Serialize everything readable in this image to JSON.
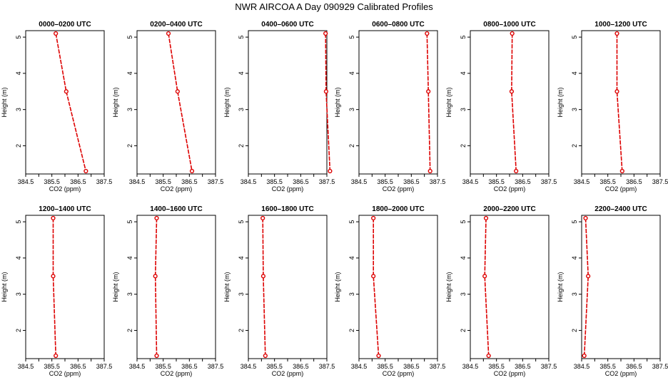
{
  "title": "NWR AIRCOA A  Day 090929  Calibrated Profiles",
  "colors": {
    "profile": "#dd0000",
    "axis": "#000000"
  },
  "chart_data": [
    {
      "type": "line",
      "title": "0000–0200 UTC",
      "xlabel": "CO2 (ppm)",
      "ylabel": "Height (m)",
      "xlim": [
        384.5,
        387.5
      ],
      "ylim": [
        1.3,
        5.1
      ],
      "xticks": [
        "384.5",
        "385.5",
        "386.5",
        "387.5"
      ],
      "yticks": [
        "2",
        "3",
        "4",
        "5"
      ],
      "grid": false,
      "series": [
        {
          "x": [
            385.65,
            386.05,
            386.8
          ],
          "y": [
            5.1,
            3.5,
            1.3
          ]
        }
      ]
    },
    {
      "type": "line",
      "title": "0200–0400 UTC",
      "xlabel": "CO2 (ppm)",
      "ylabel": "Height (m)",
      "xlim": [
        384.5,
        387.5
      ],
      "ylim": [
        1.3,
        5.1
      ],
      "xticks": [
        "384.5",
        "385.5",
        "386.5",
        "387.5"
      ],
      "yticks": [
        "2",
        "3",
        "4",
        "5"
      ],
      "grid": false,
      "series": [
        {
          "x": [
            385.7,
            386.05,
            386.6
          ],
          "y": [
            5.1,
            3.5,
            1.3
          ]
        }
      ]
    },
    {
      "type": "line",
      "title": "0400–0600 UTC",
      "xlabel": "CO2 (ppm)",
      "ylabel": "Height (m)",
      "xlim": [
        384.5,
        387.5
      ],
      "ylim": [
        1.3,
        5.1
      ],
      "xticks": [
        "384.5",
        "385.5",
        "386.5",
        "387.5"
      ],
      "yticks": [
        "2",
        "3",
        "4",
        "5"
      ],
      "grid": false,
      "series": [
        {
          "x": [
            387.45,
            387.47,
            387.62
          ],
          "y": [
            5.1,
            3.5,
            1.3
          ]
        }
      ]
    },
    {
      "type": "line",
      "title": "0600–0800 UTC",
      "xlabel": "CO2 (ppm)",
      "ylabel": "Height (m)",
      "xlim": [
        384.5,
        387.5
      ],
      "ylim": [
        1.3,
        5.1
      ],
      "xticks": [
        "384.5",
        "385.5",
        "386.5",
        "387.5"
      ],
      "yticks": [
        "2",
        "3",
        "4",
        "5"
      ],
      "grid": false,
      "series": [
        {
          "x": [
            387.1,
            387.15,
            387.22
          ],
          "y": [
            5.1,
            3.5,
            1.3
          ]
        }
      ]
    },
    {
      "type": "line",
      "title": "0800–1000 UTC",
      "xlabel": "CO2 (ppm)",
      "ylabel": "Height (m)",
      "xlim": [
        384.5,
        387.5
      ],
      "ylim": [
        1.3,
        5.1
      ],
      "xticks": [
        "384.5",
        "385.5",
        "386.5",
        "387.5"
      ],
      "yticks": [
        "2",
        "3",
        "4",
        "5"
      ],
      "grid": false,
      "series": [
        {
          "x": [
            386.1,
            386.08,
            386.25
          ],
          "y": [
            5.1,
            3.5,
            1.3
          ]
        }
      ]
    },
    {
      "type": "line",
      "title": "1000–1200 UTC",
      "xlabel": "CO2 (ppm)",
      "ylabel": "Height (m)",
      "xlim": [
        384.5,
        387.5
      ],
      "ylim": [
        1.3,
        5.1
      ],
      "xticks": [
        "384.5",
        "385.5",
        "386.5",
        "387.5"
      ],
      "yticks": [
        "2",
        "3",
        "4",
        "5"
      ],
      "grid": false,
      "series": [
        {
          "x": [
            385.85,
            385.85,
            386.05
          ],
          "y": [
            5.1,
            3.5,
            1.3
          ]
        }
      ]
    },
    {
      "type": "line",
      "title": "1200–1400 UTC",
      "xlabel": "CO2 (ppm)",
      "ylabel": "Height (m)",
      "xlim": [
        384.5,
        387.5
      ],
      "ylim": [
        1.3,
        5.1
      ],
      "xticks": [
        "384.5",
        "385.5",
        "386.5",
        "387.5"
      ],
      "yticks": [
        "2",
        "3",
        "4",
        "5"
      ],
      "grid": false,
      "series": [
        {
          "x": [
            385.55,
            385.55,
            385.65
          ],
          "y": [
            5.1,
            3.5,
            1.3
          ]
        }
      ]
    },
    {
      "type": "line",
      "title": "1400–1600 UTC",
      "xlabel": "CO2 (ppm)",
      "ylabel": "Height (m)",
      "xlim": [
        384.5,
        387.5
      ],
      "ylim": [
        1.3,
        5.1
      ],
      "xticks": [
        "384.5",
        "385.5",
        "386.5",
        "387.5"
      ],
      "yticks": [
        "2",
        "3",
        "4",
        "5"
      ],
      "grid": false,
      "series": [
        {
          "x": [
            385.25,
            385.2,
            385.25
          ],
          "y": [
            5.1,
            3.5,
            1.3
          ]
        }
      ]
    },
    {
      "type": "line",
      "title": "1600–1800 UTC",
      "xlabel": "CO2 (ppm)",
      "ylabel": "Height (m)",
      "xlim": [
        384.5,
        387.5
      ],
      "ylim": [
        1.3,
        5.1
      ],
      "xticks": [
        "384.5",
        "385.5",
        "386.5",
        "387.5"
      ],
      "yticks": [
        "2",
        "3",
        "4",
        "5"
      ],
      "grid": false,
      "series": [
        {
          "x": [
            385.05,
            385.07,
            385.15
          ],
          "y": [
            5.1,
            3.5,
            1.3
          ]
        }
      ]
    },
    {
      "type": "line",
      "title": "1800–2000 UTC",
      "xlabel": "CO2 (ppm)",
      "ylabel": "Height (m)",
      "xlim": [
        384.5,
        387.5
      ],
      "ylim": [
        1.3,
        5.1
      ],
      "xticks": [
        "384.5",
        "385.5",
        "386.5",
        "387.5"
      ],
      "yticks": [
        "2",
        "3",
        "4",
        "5"
      ],
      "grid": false,
      "series": [
        {
          "x": [
            385.05,
            385.05,
            385.25
          ],
          "y": [
            5.1,
            3.5,
            1.3
          ]
        }
      ]
    },
    {
      "type": "line",
      "title": "2000–2200 UTC",
      "xlabel": "CO2 (ppm)",
      "ylabel": "Height (m)",
      "xlim": [
        384.5,
        387.5
      ],
      "ylim": [
        1.3,
        5.1
      ],
      "xticks": [
        "384.5",
        "385.5",
        "386.5",
        "387.5"
      ],
      "yticks": [
        "2",
        "3",
        "4",
        "5"
      ],
      "grid": false,
      "series": [
        {
          "x": [
            385.1,
            385.05,
            385.2
          ],
          "y": [
            5.1,
            3.5,
            1.3
          ]
        }
      ]
    },
    {
      "type": "line",
      "title": "2200–2400 UTC",
      "xlabel": "CO2 (ppm)",
      "ylabel": "Height (m)",
      "xlim": [
        384.5,
        387.5
      ],
      "ylim": [
        1.3,
        5.1
      ],
      "xticks": [
        "384.5",
        "385.5",
        "386.5",
        "387.5"
      ],
      "yticks": [
        "2",
        "3",
        "4",
        "5"
      ],
      "grid": false,
      "series": [
        {
          "x": [
            384.65,
            384.75,
            384.6
          ],
          "y": [
            5.1,
            3.5,
            1.3
          ]
        }
      ]
    }
  ]
}
